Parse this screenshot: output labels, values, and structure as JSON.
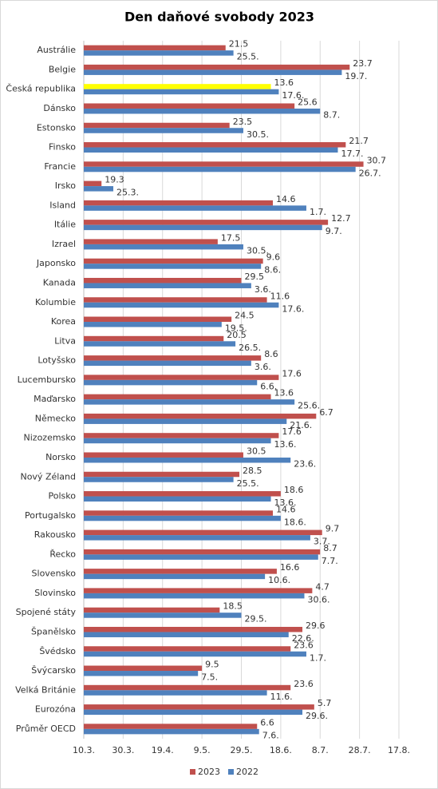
{
  "chart_data": {
    "type": "bar",
    "orientation": "horizontal",
    "title": "Den daňové svobody 2023",
    "categories": [
      "Austrálie",
      "Belgie",
      "Česká republika",
      "Dánsko",
      "Estonsko",
      "Finsko",
      "Francie",
      "Irsko",
      "Island",
      "Itálie",
      "Izrael",
      "Japonsko",
      "Kanada",
      "Kolumbie",
      "Korea",
      "Litva",
      "Lotyšsko",
      "Lucembursko",
      "Maďarsko",
      "Německo",
      "Nizozemsko",
      "Norsko",
      "Nový Zéland",
      "Polsko",
      "Portugalsko",
      "Rakousko",
      "Řecko",
      "Slovensko",
      "Slovinsko",
      "Spojené státy",
      "Španělsko",
      "Švédsko",
      "Švýcarsko",
      "Velká Británie",
      "Eurozóna",
      "Průměr OECD"
    ],
    "series": [
      {
        "name": "2023",
        "color": "#c0504d",
        "values": [
          141,
          204,
          164,
          176,
          143,
          202,
          211,
          78,
          165,
          193,
          137,
          160,
          149,
          162,
          144,
          140,
          159,
          168,
          164,
          187,
          168,
          150,
          148,
          169,
          165,
          190,
          189,
          167,
          185,
          138,
          180,
          174,
          129,
          174,
          186,
          157
        ],
        "value_labels": [
          "21.5",
          "23.7",
          "13.6",
          "25.6",
          "23.5",
          "21.7",
          "30.7",
          "19.3",
          "14.6",
          "12.7",
          "17.5",
          "9.6",
          "29.5",
          "11.6",
          "24.5",
          "20.5",
          "8.6",
          "17.6",
          "13.6",
          "6.7",
          "17.6",
          "30.5",
          "28.5",
          "18.6",
          "14.6",
          "9.7",
          "8.7",
          "16.6",
          "4.7",
          "18.5",
          "29.6",
          "23.6",
          "9.5",
          "23.6",
          "5.7",
          "6.6"
        ]
      },
      {
        "name": "2022",
        "color": "#4f81bd",
        "values": [
          145,
          200,
          168,
          189,
          150,
          198,
          207,
          84,
          182,
          190,
          150,
          159,
          154,
          168,
          139,
          146,
          154,
          157,
          176,
          172,
          164,
          174,
          145,
          164,
          169,
          184,
          188,
          161,
          181,
          149,
          173,
          182,
          127,
          162,
          180,
          158
        ],
        "value_labels": [
          "25.5.",
          "19.7.",
          "17.6.",
          "8.7.",
          "30.5.",
          "17.7.",
          "26.7.",
          "25.3.",
          "1.7.",
          "9.7.",
          "30.5.",
          "8.6.",
          "3.6.",
          "17.6.",
          "19.5.",
          "26.5.",
          "3.6.",
          "6.6.",
          "25.6.",
          "21.6.",
          "13.6.",
          "23.6.",
          "25.5.",
          "13.6.",
          "18.6.",
          "3.7.",
          "7.7.",
          "10.6.",
          "30.6.",
          "29.5.",
          "22.6.",
          "1.7.",
          "7.5.",
          "11.6.",
          "29.6.",
          "7.6."
        ]
      }
    ],
    "highlight_category": "Česká republika",
    "highlight_color": "#ffff00",
    "xlim": [
      69,
      229
    ],
    "xticks": [
      {
        "value": 69,
        "label": "10.3."
      },
      {
        "value": 89,
        "label": "30.3."
      },
      {
        "value": 109,
        "label": "19.4."
      },
      {
        "value": 129,
        "label": "9.5."
      },
      {
        "value": 149,
        "label": "29.5."
      },
      {
        "value": 169,
        "label": "18.6."
      },
      {
        "value": 189,
        "label": "8.7."
      },
      {
        "value": 209,
        "label": "28.7."
      },
      {
        "value": 229,
        "label": "17.8."
      }
    ],
    "grid": true,
    "legend": "bottom"
  }
}
